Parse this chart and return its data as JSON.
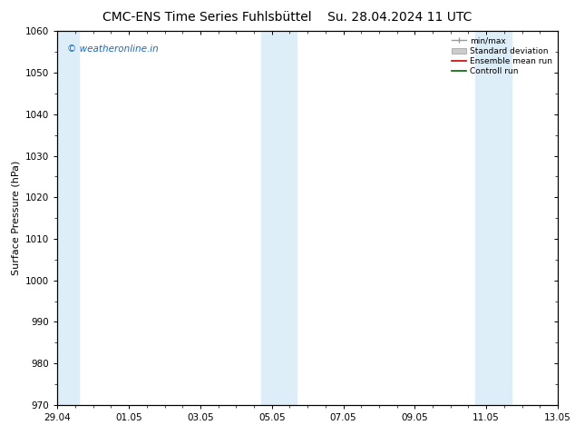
{
  "title_left": "CMC-ENS Time Series Fuhlsbüttel",
  "title_right": "Su. 28.04.2024 11 UTC",
  "ylabel": "Surface Pressure (hPa)",
  "ylim": [
    970,
    1060
  ],
  "yticks": [
    970,
    980,
    990,
    1000,
    1010,
    1020,
    1030,
    1040,
    1050,
    1060
  ],
  "xtick_labels": [
    "29.04",
    "01.05",
    "03.05",
    "05.05",
    "07.05",
    "09.05",
    "11.05",
    "13.05"
  ],
  "xtick_positions": [
    0,
    2,
    4,
    6,
    8,
    10,
    12,
    14
  ],
  "shaded_bands": [
    {
      "x_start": -0.15,
      "x_end": 0.6
    },
    {
      "x_start": 5.7,
      "x_end": 6.7
    },
    {
      "x_start": 11.7,
      "x_end": 12.7
    }
  ],
  "shade_color": "#ddeef8",
  "bg_color": "#ffffff",
  "watermark_text": "© weatheronline.in",
  "watermark_color": "#1a6abf",
  "legend_labels": [
    "min/max",
    "Standard deviation",
    "Ensemble mean run",
    "Controll run"
  ],
  "title_fontsize": 10,
  "tick_fontsize": 7.5,
  "ylabel_fontsize": 8,
  "watermark_fontsize": 7.5
}
